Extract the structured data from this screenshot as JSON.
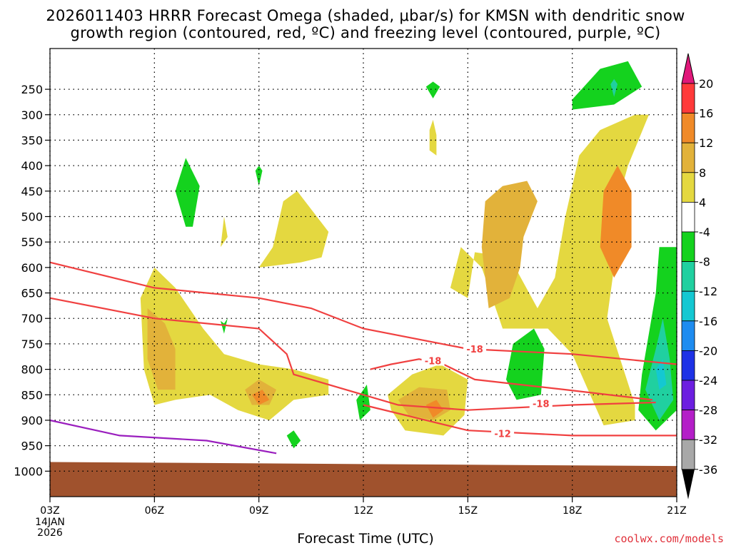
{
  "title_line1": "2026011403 HRRR Forecast Omega (shaded, μbar/s) for KMSN with dendritic snow",
  "title_line2": "growth region (contoured, red, ºC) and freezing level (contoured, purple, ºC)",
  "xlabel": "Forecast Time (UTC)",
  "credit": "coolwx.com/models",
  "chart_data": {
    "type": "heatmap",
    "title": "2026011403 HRRR Forecast Omega (shaded, μbar/s) for KMSN with dendritic snow growth region (contoured, red, ºC) and freezing level (contoured, purple, ºC)",
    "xlabel": "Forecast Time (UTC)",
    "ylabel": "",
    "x_ticks": [
      {
        "value": 3,
        "label": "03Z"
      },
      {
        "value": 6,
        "label": "06Z"
      },
      {
        "value": 9,
        "label": "09Z"
      },
      {
        "value": 12,
        "label": "12Z"
      },
      {
        "value": 15,
        "label": "15Z"
      },
      {
        "value": 18,
        "label": "18Z"
      },
      {
        "value": 21,
        "label": "21Z"
      }
    ],
    "x_start_extra": [
      "14JAN",
      "2026"
    ],
    "xlim": [
      3,
      21
    ],
    "y_ticks": [
      250,
      300,
      350,
      400,
      450,
      500,
      550,
      600,
      650,
      700,
      750,
      800,
      850,
      900,
      950,
      1000
    ],
    "ylim": [
      1050,
      170
    ],
    "colorbar": {
      "labels": [
        "20",
        "16",
        "12",
        "8",
        "4",
        "-4",
        "-8",
        "-12",
        "-16",
        "-20",
        "-24",
        "-28",
        "-32",
        "-36"
      ],
      "colors": [
        "#ff3a3a",
        "#f08a28",
        "#e2b23a",
        "#e4d840",
        "#ffffff",
        "#14d21e",
        "#20d0a0",
        "#14c8d2",
        "#1e8cf0",
        "#1e32e6",
        "#6c1ee0",
        "#b41ec8",
        "#a8a8a8"
      ],
      "top_color": "#e0187a",
      "bottom_color": "#000000"
    },
    "regions": [
      {
        "level": "4 to 8",
        "color": "#e4d840",
        "label": "main ascent 14Z-20Z",
        "points": [
          [
            14.5,
            640
          ],
          [
            15.0,
            660
          ],
          [
            15.2,
            570
          ],
          [
            16.2,
            580
          ],
          [
            17.0,
            680
          ],
          [
            17.5,
            620
          ],
          [
            17.8,
            500
          ],
          [
            18.2,
            380
          ],
          [
            18.8,
            330
          ],
          [
            19.8,
            300
          ],
          [
            20.2,
            300
          ],
          [
            19.6,
            400
          ],
          [
            19.2,
            500
          ],
          [
            19.0,
            560
          ],
          [
            19.2,
            600
          ],
          [
            19.0,
            700
          ],
          [
            19.8,
            870
          ],
          [
            19.8,
            900
          ],
          [
            18.9,
            910
          ],
          [
            18.0,
            770
          ],
          [
            17.3,
            720
          ],
          [
            16.0,
            720
          ],
          [
            15.4,
            600
          ],
          [
            14.8,
            560
          ]
        ]
      },
      {
        "level": "8 to 12",
        "color": "#e2b23a",
        "label": "core 15Z-17Z",
        "points": [
          [
            15.6,
            680
          ],
          [
            15.4,
            560
          ],
          [
            15.5,
            470
          ],
          [
            16.0,
            440
          ],
          [
            16.7,
            430
          ],
          [
            17.0,
            470
          ],
          [
            16.6,
            540
          ],
          [
            16.5,
            600
          ],
          [
            16.2,
            660
          ]
        ]
      },
      {
        "level": "12 to 16",
        "color": "#f08a28",
        "label": "core 19Z",
        "points": [
          [
            19.3,
            400
          ],
          [
            19.7,
            450
          ],
          [
            19.7,
            560
          ],
          [
            19.2,
            620
          ],
          [
            18.8,
            560
          ],
          [
            18.9,
            450
          ]
        ]
      },
      {
        "level": "-4 to -8",
        "color": "#14d21e",
        "label": "green pockets",
        "points": [
          [
            16.3,
            750
          ],
          [
            16.9,
            720
          ],
          [
            17.2,
            760
          ],
          [
            17.1,
            850
          ],
          [
            16.4,
            860
          ],
          [
            16.1,
            820
          ]
        ]
      }
    ],
    "contours": [
      {
        "value": "-18",
        "color": "#f04040",
        "points": [
          [
            3,
            590
          ],
          [
            6,
            640
          ],
          [
            9,
            660
          ],
          [
            10.5,
            680
          ],
          [
            12,
            720
          ],
          [
            15,
            760
          ],
          [
            18,
            770
          ],
          [
            21,
            790
          ]
        ]
      },
      {
        "value": "-18",
        "color": "#f04040",
        "points": [
          [
            12.2,
            800
          ],
          [
            12.8,
            790
          ],
          [
            13.6,
            780
          ],
          [
            14.3,
            790
          ],
          [
            15.2,
            820
          ],
          [
            17.8,
            840
          ],
          [
            20.3,
            860
          ]
        ]
      },
      {
        "value": "-18",
        "color": "#f04040",
        "points": [
          [
            3,
            660
          ],
          [
            6,
            700
          ],
          [
            9,
            720
          ],
          [
            9.8,
            770
          ],
          [
            10,
            810
          ],
          [
            12,
            850
          ],
          [
            13,
            870
          ],
          [
            15,
            880
          ],
          [
            18,
            870
          ],
          [
            20.4,
            865
          ]
        ]
      },
      {
        "value": "-12",
        "color": "#f04040",
        "points": [
          [
            12,
            870
          ],
          [
            15,
            920
          ],
          [
            18,
            930
          ],
          [
            21,
            930
          ]
        ]
      },
      {
        "value": "0",
        "color": "#9a1ebe",
        "points": [
          [
            3,
            900
          ],
          [
            5,
            930
          ],
          [
            7.5,
            940
          ],
          [
            9.5,
            965
          ]
        ]
      }
    ],
    "terrain_color": "#a0522d"
  }
}
